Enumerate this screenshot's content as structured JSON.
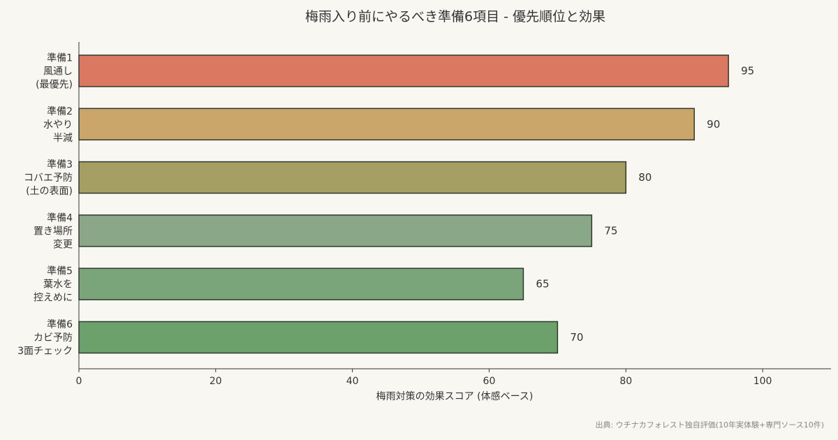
{
  "chart_data": {
    "type": "bar",
    "orientation": "horizontal",
    "title": "梅雨入り前にやるべき準備6項目 - 優先順位と効果",
    "xlabel": "梅雨対策の効果スコア (体感ベース)",
    "ylabel": "",
    "xlim": [
      0,
      110
    ],
    "xticks": [
      0,
      20,
      40,
      60,
      80,
      100
    ],
    "grid": false,
    "legend": "none",
    "categories": [
      [
        "準備1",
        "風通し",
        "(最優先)"
      ],
      [
        "準備2",
        "水やり",
        "半減"
      ],
      [
        "準備3",
        "コバエ予防",
        "(土の表面)"
      ],
      [
        "準備4",
        "置き場所",
        "変更"
      ],
      [
        "準備5",
        "葉水を",
        "控えめに"
      ],
      [
        "準備6",
        "カビ予防",
        "3面チェック"
      ]
    ],
    "values": [
      95,
      90,
      80,
      75,
      65,
      70
    ],
    "colors": [
      "#db7862",
      "#cba66a",
      "#a59f63",
      "#8aa888",
      "#7aa57b",
      "#6da16c"
    ]
  },
  "source_note": "出典: ウチナカフォレスト独自評価(10年実体験+専門ソース10件)"
}
